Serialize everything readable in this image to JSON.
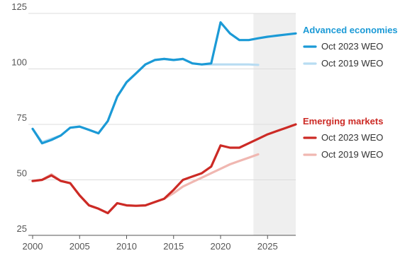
{
  "chart_data": {
    "type": "line",
    "xlim": [
      2000,
      2028
    ],
    "ylim": [
      25,
      125
    ],
    "x_ticks": [
      2000,
      2005,
      2010,
      2015,
      2020,
      2025
    ],
    "y_ticks": [
      25,
      50,
      75,
      100,
      125
    ],
    "grid": "horizontal",
    "shaded_region": {
      "from": 2023.5,
      "to": 2028,
      "color": "#efefef"
    },
    "groups": [
      {
        "title": "Advanced economies",
        "color": "#1b9ad6",
        "series": [
          {
            "name": "Oct 2023 WEO",
            "color": "#1b9ad6",
            "x": [
              2000,
              2001,
              2002,
              2003,
              2004,
              2005,
              2006,
              2007,
              2008,
              2009,
              2010,
              2011,
              2012,
              2013,
              2014,
              2015,
              2016,
              2017,
              2018,
              2019,
              2020,
              2021,
              2022,
              2023,
              2024,
              2025,
              2026,
              2027,
              2028
            ],
            "values": [
              73,
              66.5,
              68,
              70,
              73.5,
              74,
              72.5,
              71,
              76.5,
              87.5,
              94,
              98,
              102,
              104,
              104.5,
              104,
              104.5,
              102.5,
              102,
              102.5,
              121,
              116,
              113,
              113,
              113.8,
              114.5,
              115,
              115.5,
              116
            ]
          },
          {
            "name": "Oct 2019 WEO",
            "color": "#b8dcf2",
            "x": [
              2000,
              2001,
              2002,
              2003,
              2004,
              2005,
              2006,
              2007,
              2008,
              2009,
              2010,
              2011,
              2012,
              2013,
              2014,
              2015,
              2016,
              2017,
              2018,
              2019,
              2020,
              2021,
              2022,
              2023,
              2024
            ],
            "values": [
              73,
              67,
              68.5,
              70,
              73.5,
              74,
              72.5,
              71,
              76.5,
              87.5,
              94,
              98,
              102,
              104,
              104.5,
              104,
              104.5,
              102.5,
              102,
              102,
              102,
              102,
              102,
              102,
              101.8
            ]
          }
        ]
      },
      {
        "title": "Emerging markets",
        "color": "#cc2a25",
        "series": [
          {
            "name": "Oct 2023 WEO",
            "color": "#cc2a25",
            "x": [
              2000,
              2001,
              2002,
              2003,
              2004,
              2005,
              2006,
              2007,
              2008,
              2009,
              2010,
              2011,
              2012,
              2013,
              2014,
              2015,
              2016,
              2017,
              2018,
              2019,
              2020,
              2021,
              2022,
              2023,
              2024,
              2025,
              2026,
              2027,
              2028
            ],
            "values": [
              49.5,
              50,
              52,
              49.5,
              48.5,
              43,
              38.5,
              37,
              35,
              39.5,
              38.5,
              38.3,
              38.5,
              40,
              41.5,
              45.5,
              50,
              51.5,
              53,
              56,
              65.5,
              64.5,
              64.5,
              66.5,
              68.5,
              70.5,
              72,
              73.5,
              75
            ]
          },
          {
            "name": "Oct 2019 WEO",
            "color": "#f0b7b1",
            "x": [
              2000,
              2001,
              2002,
              2003,
              2004,
              2005,
              2006,
              2007,
              2008,
              2009,
              2010,
              2011,
              2012,
              2013,
              2014,
              2015,
              2016,
              2017,
              2018,
              2019,
              2020,
              2021,
              2022,
              2023,
              2024
            ],
            "values": [
              49.5,
              50,
              52.5,
              49.5,
              48.5,
              43,
              38.5,
              37,
              35,
              39.5,
              38.5,
              38.3,
              38.5,
              40,
              41.5,
              44,
              47,
              49,
              51,
              53,
              55,
              57,
              58.5,
              60,
              61.5
            ]
          }
        ]
      }
    ]
  }
}
